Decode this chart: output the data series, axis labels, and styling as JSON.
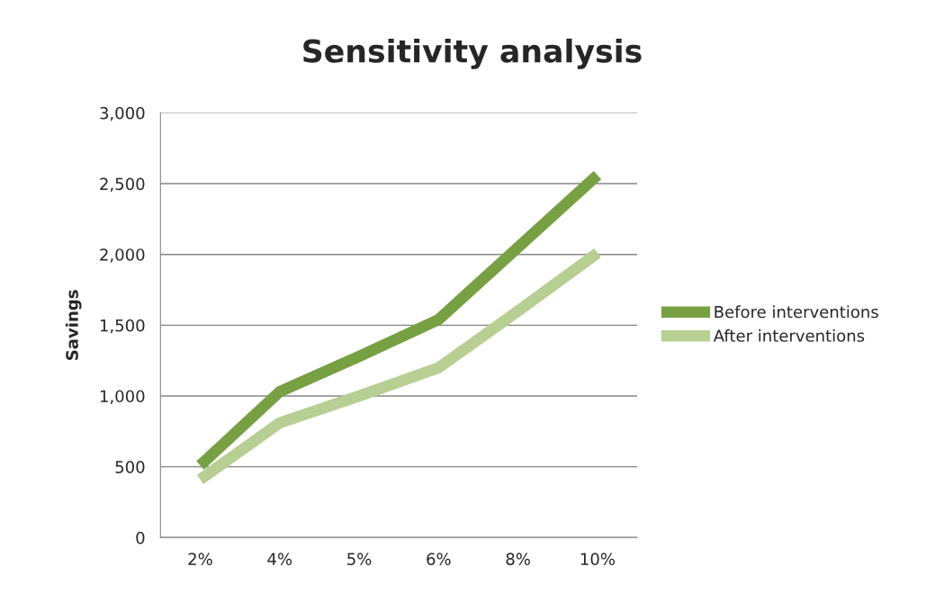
{
  "chart_data": {
    "type": "line",
    "title": "Sensitivity analysis",
    "ylabel": "Savings",
    "categories": [
      "2%",
      "4%",
      "5%",
      "6%",
      "8%",
      "10%"
    ],
    "series": [
      {
        "name": "Before interventions",
        "color": "#77a043",
        "values": [
          510,
          1030,
          1280,
          1540,
          2050,
          2560
        ]
      },
      {
        "name": "After interventions",
        "color": "#b7cf92",
        "values": [
          410,
          810,
          1000,
          1200,
          1600,
          2010
        ]
      }
    ],
    "ylim": [
      0,
      3000
    ],
    "yticks": [
      {
        "value": 0,
        "label": "0"
      },
      {
        "value": 500,
        "label": "500"
      },
      {
        "value": 1000,
        "label": "1,000"
      },
      {
        "value": 1500,
        "label": "1,500"
      },
      {
        "value": 2000,
        "label": "2,000"
      },
      {
        "value": 2500,
        "label": "2,500"
      },
      {
        "value": 3000,
        "label": "3,000"
      }
    ],
    "grid": "y",
    "legend": "right",
    "marker": "none",
    "line_style": "solid"
  }
}
